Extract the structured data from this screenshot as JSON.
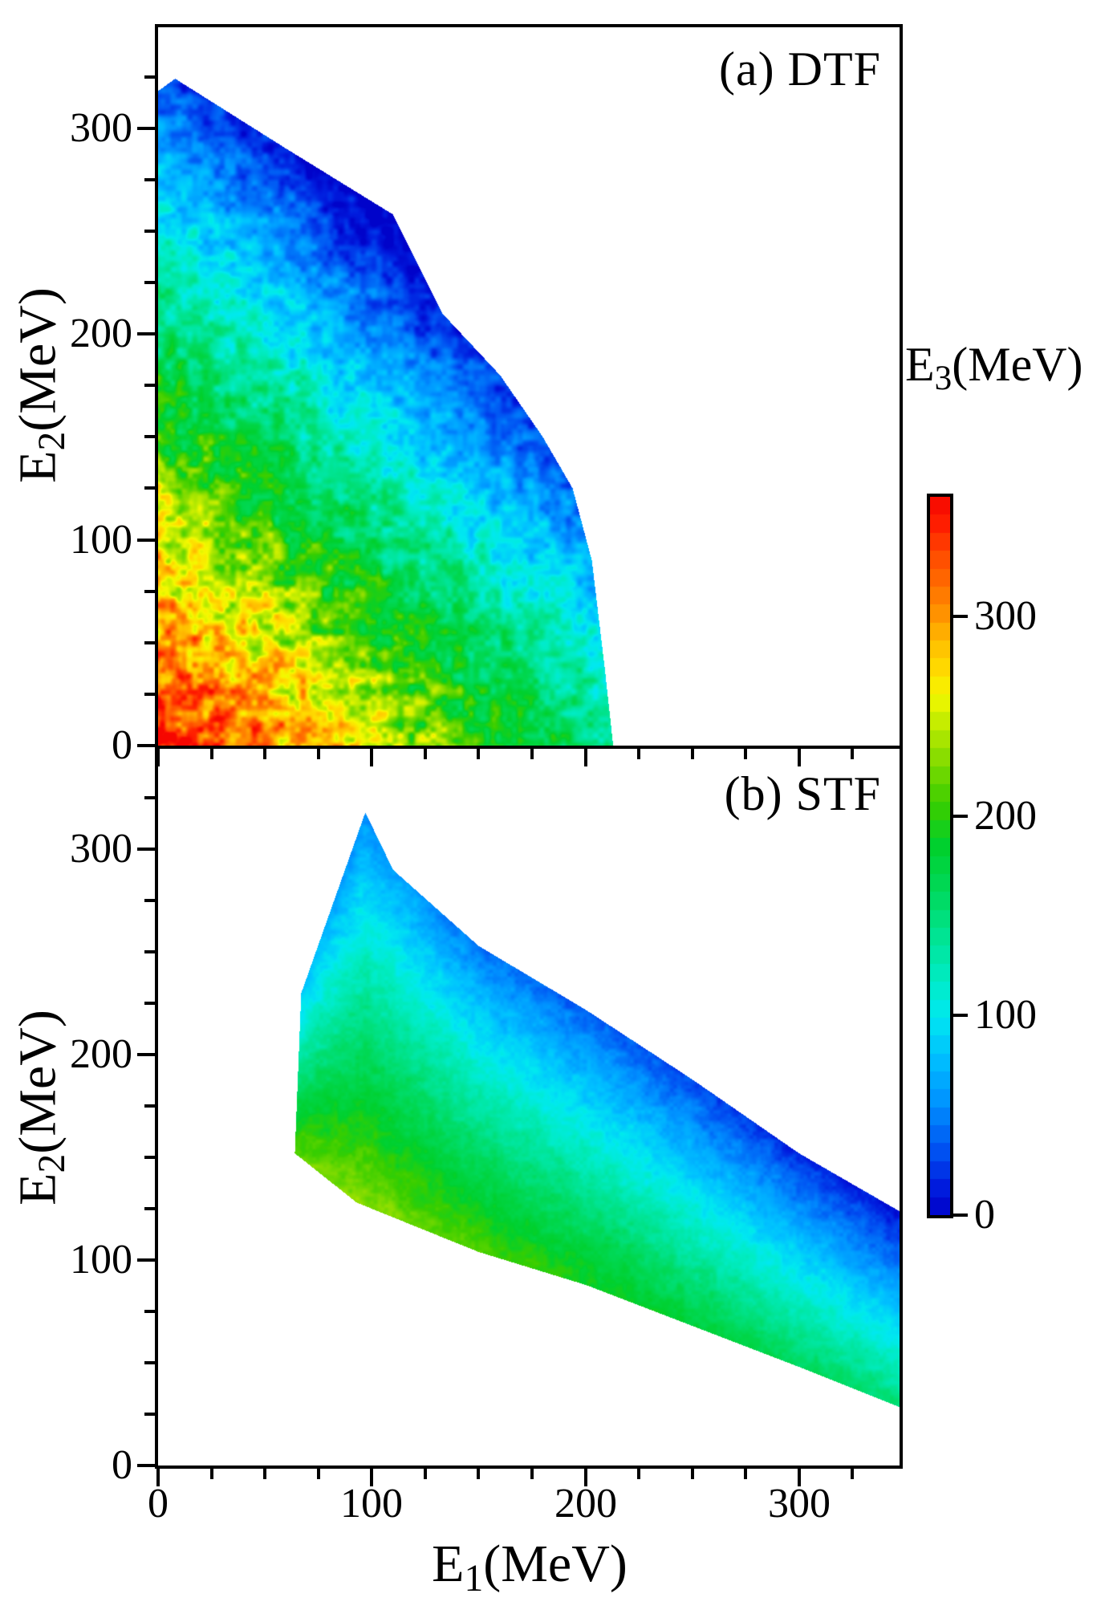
{
  "panels": {
    "a": {
      "label": "(a) DTF"
    },
    "b": {
      "label": "(b) STF"
    }
  },
  "axes": {
    "x": {
      "base": "E",
      "sub": "1",
      "unit": "(MeV)",
      "ticks": [
        0,
        100,
        200,
        300
      ],
      "range": [
        0,
        347
      ],
      "minor_step": 25
    },
    "y": {
      "base": "E",
      "sub": "2",
      "unit": "(MeV)",
      "ticks": [
        0,
        100,
        200,
        300
      ],
      "range": [
        0,
        349
      ],
      "minor_step": 25
    }
  },
  "colorbar": {
    "base": "E",
    "sub": "3",
    "unit": "(MeV)",
    "ticks": [
      0,
      100,
      200,
      300
    ],
    "range": [
      0,
      360
    ],
    "discrete_bands": 40
  },
  "chart_data": {
    "type": "heatmap",
    "title": "",
    "xlabel": "E1(MeV)",
    "ylabel": "E2(MeV)",
    "zlabel": "E3(MeV)",
    "xlim": [
      0,
      347
    ],
    "ylim": [
      0,
      349
    ],
    "zlim": [
      0,
      360
    ],
    "colormap_stops": [
      [
        0,
        "#0000C8"
      ],
      [
        14,
        "#001CDE"
      ],
      [
        32,
        "#0052F2"
      ],
      [
        56,
        "#0092FF"
      ],
      [
        80,
        "#00C2FF"
      ],
      [
        100,
        "#00E9F0"
      ],
      [
        118,
        "#00ECC4"
      ],
      [
        140,
        "#00E492"
      ],
      [
        164,
        "#00D957"
      ],
      [
        185,
        "#00D02E"
      ],
      [
        205,
        "#38CE00"
      ],
      [
        228,
        "#85DC00"
      ],
      [
        248,
        "#C8EE00"
      ],
      [
        260,
        "#F4F900"
      ],
      [
        272,
        "#FFDE00"
      ],
      [
        287,
        "#FFBE00"
      ],
      [
        300,
        "#FF9600"
      ],
      [
        316,
        "#FF6E00"
      ],
      [
        332,
        "#FF4800"
      ],
      [
        346,
        "#FF1E00"
      ],
      [
        360,
        "#F60600"
      ]
    ],
    "series": [
      {
        "name": "DTF",
        "panel": "a",
        "description": "E3 distribution vs E1,E2; hot (red ~360 MeV) at origin decreasing to blue (~0) along the outer diagonal boundary, heavy triangulated speckle",
        "boundary_polygon_MeV": [
          [
            0,
            0
          ],
          [
            0,
            318
          ],
          [
            8,
            324
          ],
          [
            60,
            290
          ],
          [
            110,
            258
          ],
          [
            133,
            210
          ],
          [
            160,
            180
          ],
          [
            180,
            150
          ],
          [
            194,
            125
          ],
          [
            203,
            90
          ],
          [
            209,
            38
          ],
          [
            213,
            0
          ]
        ],
        "field_model": {
          "type": "planar",
          "c0": 360,
          "cx": -1,
          "cy": -1,
          "clamp": [
            1.5,
            360
          ],
          "noise_amp": 52,
          "noise_scale": 15,
          "seed": 7
        }
      },
      {
        "name": "STF",
        "panel": "b",
        "description": "Diagonal band from (97,318) to (350,~75); yellow-green (~230 MeV) along lower-left edge fading to deep blue (~10) along upper-right edge, mild speckle",
        "boundary_polygon_MeV": [
          [
            97,
            318
          ],
          [
            67,
            230
          ],
          [
            64,
            152
          ],
          [
            93,
            128
          ],
          [
            150,
            104
          ],
          [
            200,
            88
          ],
          [
            250,
            68
          ],
          [
            300,
            48
          ],
          [
            348,
            28
          ],
          [
            350,
            122
          ],
          [
            300,
            152
          ],
          [
            250,
            188
          ],
          [
            200,
            222
          ],
          [
            150,
            253
          ],
          [
            110,
            290
          ]
        ],
        "field_model": {
          "type": "band",
          "bottom_edge": [
            [
              64,
              140
            ],
            [
              93,
              128
            ],
            [
              150,
              104
            ],
            [
              200,
              88
            ],
            [
              250,
              68
            ],
            [
              300,
              48
            ],
            [
              350,
              28
            ]
          ],
          "top_edge": [
            [
              64,
              235
            ],
            [
              97,
              318
            ],
            [
              150,
              253
            ],
            [
              200,
              222
            ],
            [
              250,
              188
            ],
            [
              300,
              152
            ],
            [
              350,
              120
            ]
          ],
          "s_range": [
            64,
            350
          ],
          "v_bottom": [
            238,
            148
          ],
          "v_top": [
            62,
            10
          ],
          "clamp": [
            2,
            360
          ],
          "noise_amp": 13,
          "noise_scale": 10,
          "seed": 11
        }
      }
    ]
  }
}
